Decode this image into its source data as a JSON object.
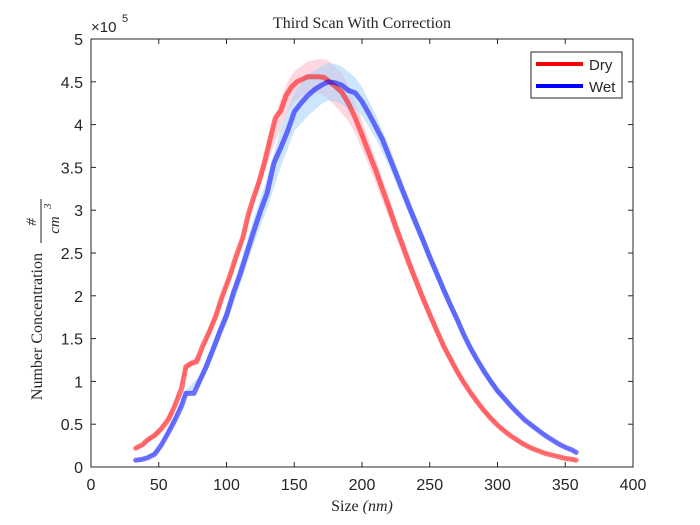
{
  "chart_data": {
    "type": "line",
    "title": "Third Scan With Correction",
    "xlabel": "Size (nm)",
    "xlabel_parts": {
      "text": "Size ",
      "unit": "(nm)"
    },
    "ylabel": "Number Concentration #/cm^3",
    "ylabel_parts": {
      "text": "Number Concentration",
      "numerator": "#",
      "denominator": "cm",
      "exponent": "3"
    },
    "y_multiplier": {
      "base": "×10",
      "exponent": "5"
    },
    "xlim": [
      0,
      400
    ],
    "ylim": [
      0,
      5
    ],
    "xticks": [
      "0",
      "50",
      "100",
      "150",
      "200",
      "250",
      "300",
      "350",
      "400"
    ],
    "yticks": [
      "0",
      "0.5",
      "1",
      "1.5",
      "2",
      "2.5",
      "3",
      "3.5",
      "4",
      "4.5",
      "5"
    ],
    "grid": false,
    "legend_position": "top-right",
    "series": [
      {
        "name": "Dry",
        "color": "#ff0000",
        "band_color": "#ffb6c8",
        "points": [
          [
            33,
            0.22
          ],
          [
            38,
            0.26
          ],
          [
            42,
            0.32
          ],
          [
            47,
            0.37
          ],
          [
            52,
            0.45
          ],
          [
            57,
            0.55
          ],
          [
            62,
            0.72
          ],
          [
            67,
            0.92
          ],
          [
            70,
            1.17
          ],
          [
            74,
            1.21
          ],
          [
            78,
            1.23
          ],
          [
            82,
            1.4
          ],
          [
            87,
            1.57
          ],
          [
            92,
            1.76
          ],
          [
            97,
            2.0
          ],
          [
            102,
            2.21
          ],
          [
            107,
            2.46
          ],
          [
            112,
            2.68
          ],
          [
            116,
            2.95
          ],
          [
            120,
            3.15
          ],
          [
            124,
            3.33
          ],
          [
            128,
            3.55
          ],
          [
            132,
            3.82
          ],
          [
            136,
            4.08
          ],
          [
            140,
            4.16
          ],
          [
            144,
            4.34
          ],
          [
            148,
            4.44
          ],
          [
            152,
            4.5
          ],
          [
            156,
            4.53
          ],
          [
            160,
            4.56
          ],
          [
            164,
            4.56
          ],
          [
            168,
            4.56
          ],
          [
            172,
            4.55
          ],
          [
            176,
            4.5
          ],
          [
            180,
            4.45
          ],
          [
            185,
            4.38
          ],
          [
            190,
            4.25
          ],
          [
            195,
            4.08
          ],
          [
            200,
            3.88
          ],
          [
            205,
            3.67
          ],
          [
            210,
            3.47
          ],
          [
            215,
            3.25
          ],
          [
            220,
            3.03
          ],
          [
            225,
            2.8
          ],
          [
            230,
            2.59
          ],
          [
            235,
            2.37
          ],
          [
            240,
            2.17
          ],
          [
            245,
            1.97
          ],
          [
            250,
            1.78
          ],
          [
            255,
            1.6
          ],
          [
            260,
            1.42
          ],
          [
            265,
            1.27
          ],
          [
            270,
            1.12
          ],
          [
            275,
            0.99
          ],
          [
            280,
            0.87
          ],
          [
            285,
            0.76
          ],
          [
            290,
            0.66
          ],
          [
            295,
            0.57
          ],
          [
            300,
            0.49
          ],
          [
            305,
            0.42
          ],
          [
            310,
            0.36
          ],
          [
            315,
            0.31
          ],
          [
            320,
            0.26
          ],
          [
            325,
            0.22
          ],
          [
            330,
            0.19
          ],
          [
            335,
            0.16
          ],
          [
            340,
            0.14
          ],
          [
            345,
            0.12
          ],
          [
            350,
            0.1
          ],
          [
            355,
            0.09
          ],
          [
            358,
            0.08
          ]
        ],
        "band_upper": [
          [
            33,
            0.23
          ],
          [
            40,
            0.3
          ],
          [
            50,
            0.44
          ],
          [
            60,
            0.69
          ],
          [
            70,
            1.2
          ],
          [
            80,
            1.33
          ],
          [
            90,
            1.74
          ],
          [
            100,
            2.17
          ],
          [
            110,
            2.62
          ],
          [
            120,
            3.2
          ],
          [
            130,
            3.8
          ],
          [
            140,
            4.3
          ],
          [
            145,
            4.5
          ],
          [
            150,
            4.62
          ],
          [
            160,
            4.74
          ],
          [
            170,
            4.77
          ],
          [
            175,
            4.75
          ],
          [
            180,
            4.68
          ],
          [
            185,
            4.6
          ],
          [
            190,
            4.45
          ],
          [
            195,
            4.26
          ],
          [
            200,
            4.05
          ],
          [
            210,
            3.6
          ],
          [
            220,
            3.14
          ],
          [
            230,
            2.68
          ],
          [
            240,
            2.24
          ],
          [
            250,
            1.84
          ],
          [
            260,
            1.47
          ],
          [
            270,
            1.16
          ],
          [
            280,
            0.9
          ],
          [
            290,
            0.69
          ],
          [
            300,
            0.51
          ],
          [
            310,
            0.38
          ],
          [
            320,
            0.28
          ],
          [
            330,
            0.2
          ],
          [
            340,
            0.15
          ],
          [
            350,
            0.11
          ],
          [
            358,
            0.09
          ]
        ],
        "band_lower": [
          [
            33,
            0.2
          ],
          [
            40,
            0.26
          ],
          [
            50,
            0.38
          ],
          [
            60,
            0.61
          ],
          [
            70,
            1.12
          ],
          [
            80,
            1.25
          ],
          [
            90,
            1.62
          ],
          [
            100,
            2.07
          ],
          [
            110,
            2.5
          ],
          [
            120,
            3.05
          ],
          [
            130,
            3.55
          ],
          [
            140,
            3.95
          ],
          [
            145,
            4.15
          ],
          [
            150,
            4.27
          ],
          [
            160,
            4.37
          ],
          [
            170,
            4.36
          ],
          [
            175,
            4.3
          ],
          [
            180,
            4.22
          ],
          [
            185,
            4.13
          ],
          [
            190,
            4.04
          ],
          [
            195,
            3.9
          ],
          [
            200,
            3.71
          ],
          [
            210,
            3.32
          ],
          [
            220,
            2.9
          ],
          [
            230,
            2.48
          ],
          [
            240,
            2.08
          ],
          [
            250,
            1.72
          ],
          [
            260,
            1.37
          ],
          [
            270,
            1.08
          ],
          [
            280,
            0.84
          ],
          [
            290,
            0.63
          ],
          [
            300,
            0.47
          ],
          [
            310,
            0.34
          ],
          [
            320,
            0.24
          ],
          [
            330,
            0.18
          ],
          [
            340,
            0.13
          ],
          [
            350,
            0.1
          ],
          [
            358,
            0.07
          ]
        ]
      },
      {
        "name": "Wet",
        "color": "#0000ff",
        "band_color": "#a6d2f7",
        "points": [
          [
            33,
            0.08
          ],
          [
            38,
            0.09
          ],
          [
            42,
            0.11
          ],
          [
            47,
            0.15
          ],
          [
            52,
            0.26
          ],
          [
            57,
            0.4
          ],
          [
            62,
            0.55
          ],
          [
            67,
            0.72
          ],
          [
            70,
            0.86
          ],
          [
            73,
            0.86
          ],
          [
            76,
            0.86
          ],
          [
            80,
            1.0
          ],
          [
            85,
            1.17
          ],
          [
            90,
            1.37
          ],
          [
            95,
            1.58
          ],
          [
            100,
            1.77
          ],
          [
            105,
            2.03
          ],
          [
            110,
            2.25
          ],
          [
            115,
            2.5
          ],
          [
            120,
            2.75
          ],
          [
            125,
            2.99
          ],
          [
            130,
            3.2
          ],
          [
            135,
            3.55
          ],
          [
            140,
            3.73
          ],
          [
            145,
            3.92
          ],
          [
            150,
            4.15
          ],
          [
            155,
            4.25
          ],
          [
            160,
            4.34
          ],
          [
            165,
            4.41
          ],
          [
            170,
            4.46
          ],
          [
            175,
            4.5
          ],
          [
            180,
            4.49
          ],
          [
            185,
            4.46
          ],
          [
            190,
            4.4
          ],
          [
            195,
            4.37
          ],
          [
            200,
            4.27
          ],
          [
            205,
            4.13
          ],
          [
            210,
            3.98
          ],
          [
            215,
            3.83
          ],
          [
            220,
            3.63
          ],
          [
            225,
            3.43
          ],
          [
            230,
            3.23
          ],
          [
            235,
            3.03
          ],
          [
            240,
            2.84
          ],
          [
            245,
            2.65
          ],
          [
            250,
            2.45
          ],
          [
            255,
            2.27
          ],
          [
            260,
            2.08
          ],
          [
            265,
            1.9
          ],
          [
            270,
            1.73
          ],
          [
            275,
            1.55
          ],
          [
            280,
            1.39
          ],
          [
            285,
            1.25
          ],
          [
            290,
            1.12
          ],
          [
            295,
            1.0
          ],
          [
            300,
            0.89
          ],
          [
            305,
            0.8
          ],
          [
            310,
            0.71
          ],
          [
            315,
            0.63
          ],
          [
            320,
            0.55
          ],
          [
            325,
            0.49
          ],
          [
            330,
            0.43
          ],
          [
            335,
            0.37
          ],
          [
            340,
            0.32
          ],
          [
            345,
            0.27
          ],
          [
            350,
            0.23
          ],
          [
            355,
            0.2
          ],
          [
            358,
            0.17
          ]
        ],
        "band_upper": [
          [
            33,
            0.09
          ],
          [
            40,
            0.11
          ],
          [
            50,
            0.22
          ],
          [
            60,
            0.54
          ],
          [
            70,
            0.9
          ],
          [
            80,
            1.06
          ],
          [
            90,
            1.45
          ],
          [
            100,
            1.87
          ],
          [
            110,
            2.37
          ],
          [
            120,
            2.9
          ],
          [
            130,
            3.38
          ],
          [
            140,
            3.95
          ],
          [
            150,
            4.38
          ],
          [
            160,
            4.58
          ],
          [
            170,
            4.68
          ],
          [
            175,
            4.72
          ],
          [
            180,
            4.71
          ],
          [
            185,
            4.68
          ],
          [
            190,
            4.62
          ],
          [
            195,
            4.55
          ],
          [
            200,
            4.44
          ],
          [
            210,
            4.12
          ],
          [
            220,
            3.75
          ],
          [
            230,
            3.33
          ],
          [
            240,
            2.93
          ],
          [
            250,
            2.53
          ],
          [
            260,
            2.15
          ],
          [
            270,
            1.79
          ],
          [
            280,
            1.44
          ],
          [
            290,
            1.16
          ],
          [
            300,
            0.93
          ],
          [
            310,
            0.74
          ],
          [
            320,
            0.57
          ],
          [
            330,
            0.45
          ],
          [
            340,
            0.33
          ],
          [
            350,
            0.24
          ],
          [
            358,
            0.18
          ]
        ],
        "band_lower": [
          [
            33,
            0.07
          ],
          [
            40,
            0.09
          ],
          [
            50,
            0.18
          ],
          [
            60,
            0.46
          ],
          [
            70,
            0.82
          ],
          [
            80,
            0.94
          ],
          [
            90,
            1.29
          ],
          [
            100,
            1.67
          ],
          [
            110,
            2.13
          ],
          [
            120,
            2.6
          ],
          [
            130,
            3.02
          ],
          [
            140,
            3.5
          ],
          [
            150,
            3.92
          ],
          [
            160,
            4.1
          ],
          [
            170,
            4.24
          ],
          [
            175,
            4.28
          ],
          [
            180,
            4.27
          ],
          [
            185,
            4.24
          ],
          [
            190,
            4.18
          ],
          [
            195,
            4.18
          ],
          [
            200,
            4.1
          ],
          [
            210,
            3.84
          ],
          [
            220,
            3.51
          ],
          [
            230,
            3.13
          ],
          [
            240,
            2.75
          ],
          [
            250,
            2.37
          ],
          [
            260,
            2.01
          ],
          [
            270,
            1.67
          ],
          [
            280,
            1.34
          ],
          [
            290,
            1.08
          ],
          [
            300,
            0.85
          ],
          [
            310,
            0.68
          ],
          [
            320,
            0.53
          ],
          [
            330,
            0.41
          ],
          [
            340,
            0.31
          ],
          [
            350,
            0.22
          ],
          [
            358,
            0.16
          ]
        ]
      }
    ]
  }
}
